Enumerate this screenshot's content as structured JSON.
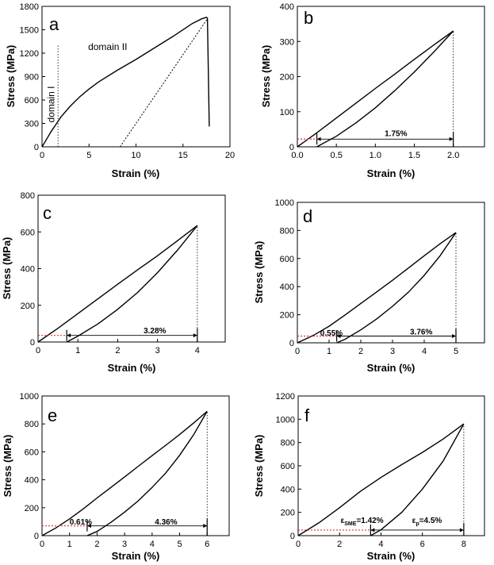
{
  "chart_data": [
    {
      "panel": "a",
      "type": "line",
      "xlabel": "Strain (%)",
      "ylabel": "Stress (MPa)",
      "xlim": [
        0,
        20
      ],
      "ylim": [
        0,
        1800
      ],
      "xticks": [
        0,
        5,
        10,
        15,
        20
      ],
      "yticks": [
        0,
        300,
        600,
        900,
        1200,
        1500,
        1800
      ],
      "series": [
        {
          "style": "solid",
          "x": [
            0,
            0.5,
            1,
            1.5,
            2,
            3,
            4,
            5,
            6,
            8,
            10,
            12,
            14,
            16,
            17,
            17.5,
            17.6,
            17.8
          ],
          "y": [
            0,
            100,
            200,
            290,
            380,
            520,
            640,
            740,
            830,
            980,
            1120,
            1270,
            1420,
            1580,
            1640,
            1660,
            1650,
            260
          ]
        },
        {
          "style": "dotted",
          "x": [
            8.3,
            17.6
          ],
          "y": [
            0,
            1640
          ]
        }
      ],
      "vlines": [
        {
          "x": 1.7,
          "y0": 0,
          "y1": 1300,
          "style": "dotted"
        }
      ],
      "annotations": [
        {
          "text": "domain II",
          "x": 4.9,
          "y": 1240
        },
        {
          "text": "domain I",
          "x": 1.3,
          "y": 310,
          "rotate": -90
        }
      ]
    },
    {
      "panel": "b",
      "type": "line",
      "xlabel": "Strain (%)",
      "ylabel": "Stress (MPa)",
      "xlim": [
        0,
        2.4
      ],
      "ylim": [
        0,
        400
      ],
      "xticks": [
        0.0,
        0.5,
        1.0,
        1.5,
        2.0
      ],
      "xtick_labels": [
        "0.0",
        "0.5",
        "1.0",
        "1.5",
        "2.0"
      ],
      "yticks": [
        0,
        100,
        200,
        300,
        400
      ],
      "series": [
        {
          "style": "solid",
          "name": "",
          "x": [
            0,
            0.25,
            0.5,
            0.75,
            1.0,
            1.25,
            1.5,
            1.75,
            2.0
          ],
          "y": [
            0,
            40,
            82,
            124,
            166,
            207,
            249,
            290,
            330
          ]
        },
        {
          "style": "solid",
          "name": "",
          "x": [
            2.0,
            1.75,
            1.5,
            1.25,
            1.0,
            0.75,
            0.5,
            0.25
          ],
          "y": [
            330,
            270,
            213,
            160,
            111,
            68,
            30,
            0
          ]
        }
      ],
      "vlines": [
        {
          "x": 2.0,
          "y0": 0,
          "y1": 330,
          "style": "dotted"
        }
      ],
      "arrows": [
        {
          "x0": 0.25,
          "x1": 2.0,
          "y": 22
        }
      ],
      "annotations": [
        {
          "text": "1.75%",
          "x": 1.12,
          "y": 30
        }
      ]
    },
    {
      "panel": "c",
      "type": "line",
      "xlabel": "Strain (%)",
      "ylabel": "Stress (MPa)",
      "xlim": [
        0,
        4.7
      ],
      "ylim": [
        0,
        800
      ],
      "xticks": [
        0,
        1,
        2,
        3,
        4
      ],
      "yticks": [
        0,
        200,
        400,
        600,
        800
      ],
      "series": [
        {
          "style": "solid",
          "x": [
            0,
            0.5,
            1,
            1.5,
            2,
            2.5,
            3,
            3.5,
            4
          ],
          "y": [
            0,
            75,
            155,
            235,
            315,
            393,
            470,
            552,
            635
          ]
        },
        {
          "style": "solid",
          "x": [
            4,
            3.5,
            3,
            2.5,
            2,
            1.5,
            1,
            0.72
          ],
          "y": [
            635,
            500,
            378,
            270,
            178,
            98,
            32,
            0
          ]
        }
      ],
      "vlines": [
        {
          "x": 4.0,
          "y0": 0,
          "y1": 635,
          "style": "dotted"
        }
      ],
      "arrows": [
        {
          "x0": 0.72,
          "x1": 4.0,
          "y": 36
        }
      ],
      "annotations": [
        {
          "text": "3.28%",
          "x": 2.65,
          "y": 48
        }
      ]
    },
    {
      "panel": "d",
      "type": "line",
      "xlabel": "Strain (%)",
      "ylabel": "Stress (MPa)",
      "xlim": [
        0,
        5.9
      ],
      "ylim": [
        0,
        1000
      ],
      "xticks": [
        0,
        1,
        2,
        3,
        4,
        5
      ],
      "yticks": [
        0,
        200,
        400,
        600,
        800,
        1000
      ],
      "series": [
        {
          "style": "solid",
          "x": [
            0,
            0.5,
            1,
            1.5,
            2,
            2.5,
            3,
            3.5,
            4,
            4.5,
            5
          ],
          "y": [
            0,
            52,
            118,
            197,
            280,
            362,
            445,
            532,
            620,
            705,
            785
          ]
        },
        {
          "style": "solid",
          "x": [
            5,
            4.5,
            4,
            3.5,
            3,
            2.5,
            2,
            1.5,
            1.24
          ],
          "y": [
            785,
            620,
            480,
            360,
            260,
            170,
            92,
            25,
            0
          ]
        }
      ],
      "vlines": [
        {
          "x": 5.0,
          "y0": 0,
          "y1": 785,
          "style": "dotted"
        }
      ],
      "arrows": [
        {
          "x0": 1.24,
          "x1": 5.0,
          "y": 48
        }
      ],
      "annotations": [
        {
          "text": "0.55%",
          "x": 0.72,
          "y": 52
        },
        {
          "text": "3.76%",
          "x": 3.55,
          "y": 60
        }
      ]
    },
    {
      "panel": "e",
      "type": "line",
      "xlabel": "Strain (%)",
      "ylabel": "Stress (MPa)",
      "xlim": [
        0,
        6.8
      ],
      "ylim": [
        0,
        1000
      ],
      "xticks": [
        0,
        1,
        2,
        3,
        4,
        5,
        6
      ],
      "yticks": [
        0,
        200,
        400,
        600,
        800,
        1000
      ],
      "series": [
        {
          "style": "solid",
          "x": [
            0,
            0.5,
            1,
            1.5,
            2,
            2.5,
            3,
            3.5,
            4,
            4.5,
            5,
            5.5,
            6
          ],
          "y": [
            0,
            55,
            120,
            192,
            270,
            345,
            420,
            497,
            573,
            648,
            724,
            805,
            890
          ]
        },
        {
          "style": "solid",
          "x": [
            6,
            5.5,
            5,
            4.5,
            4,
            3.5,
            3,
            2.5,
            2,
            1.64
          ],
          "y": [
            890,
            720,
            575,
            450,
            345,
            250,
            168,
            95,
            30,
            0
          ]
        }
      ],
      "vlines": [
        {
          "x": 6.0,
          "y0": 0,
          "y1": 890,
          "style": "dotted"
        }
      ],
      "arrows": [
        {
          "x0": 1.64,
          "x1": 6.0,
          "y": 70
        }
      ],
      "annotations": [
        {
          "text": "0.61%",
          "x": 1.0,
          "y": 80
        },
        {
          "text": "4.36%",
          "x": 4.1,
          "y": 80
        }
      ]
    },
    {
      "panel": "f",
      "type": "line",
      "xlabel": "Strain (%)",
      "ylabel": "Stress (MPa)",
      "xlim": [
        0,
        9
      ],
      "ylim": [
        0,
        1200
      ],
      "xticks": [
        0,
        2,
        4,
        6,
        8
      ],
      "yticks": [
        0,
        200,
        400,
        600,
        800,
        1000,
        1200
      ],
      "series": [
        {
          "style": "solid",
          "x": [
            0,
            1,
            2,
            3,
            4,
            5,
            6,
            7,
            8
          ],
          "y": [
            0,
            110,
            240,
            380,
            500,
            610,
            715,
            830,
            960
          ]
        },
        {
          "style": "solid",
          "x": [
            8,
            7,
            6,
            5,
            4,
            3.5
          ],
          "y": [
            960,
            640,
            400,
            200,
            50,
            0
          ]
        }
      ],
      "vlines": [
        {
          "x": 8.0,
          "y0": 0,
          "y1": 960,
          "style": "dotted"
        }
      ],
      "arrows": [
        {
          "x0": 3.5,
          "x1": 8.0,
          "y": 48
        }
      ],
      "annotations": [
        {
          "text": "ε",
          "sub": "SME",
          "tail": "=1.42%",
          "x": 2.05,
          "y": 110
        },
        {
          "text": "ε",
          "sub": "p",
          "tail": "=4.5%",
          "x": 5.5,
          "y": 110
        }
      ]
    }
  ]
}
